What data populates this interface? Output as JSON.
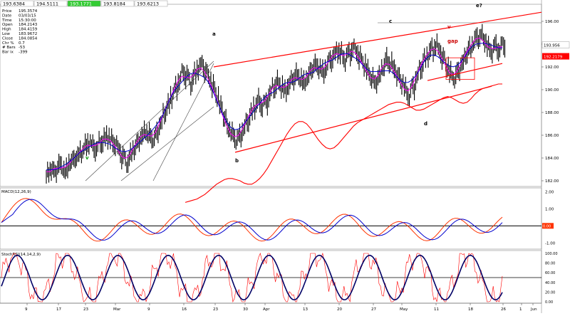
{
  "header": {
    "boxes": [
      {
        "text": "193.6384",
        "color": "#ffffff",
        "bg": "#ffffff",
        "fg": "#000000"
      },
      {
        "text": "194.5111",
        "color": "#ffffff",
        "bg": "#ffffff",
        "fg": "#000000"
      },
      {
        "text": "193.1771",
        "color": "#33cc33",
        "bg": "#33cc33",
        "fg": "#ffffff"
      },
      {
        "text": "193.8184",
        "color": "#ffffff",
        "bg": "#ffffff",
        "fg": "#000000"
      },
      {
        "text": "193.6213",
        "color": "#ffffff",
        "bg": "#ffffff",
        "fg": "#000000"
      }
    ]
  },
  "info_panel": [
    {
      "label": "Price",
      "value": "195.3574"
    },
    {
      "label": "Date",
      "value": "03/03/15"
    },
    {
      "label": "Time",
      "value": "15:30:00"
    },
    {
      "label": "Open",
      "value": "184.2143"
    },
    {
      "label": "High",
      "value": "184.4159"
    },
    {
      "label": "Low",
      "value": "183.9672"
    },
    {
      "label": "Close",
      "value": "184.0854"
    },
    {
      "label": "Chr %",
      "value": "0.7"
    },
    {
      "label": "# Bars",
      "value": "-53"
    },
    {
      "label": "Bar ix",
      "value": "-399"
    }
  ],
  "wave_labels": [
    {
      "text": "a",
      "color": "#000000"
    },
    {
      "text": "b",
      "color": "#000000"
    },
    {
      "text": "c",
      "color": "#000000"
    },
    {
      "text": "d",
      "color": "#000000"
    },
    {
      "text": "e?",
      "color": "#000000"
    },
    {
      "text": "v",
      "color": "#cc0000"
    },
    {
      "text": "v",
      "color": "#009900"
    },
    {
      "text": "gap",
      "color": "#cc0000"
    }
  ],
  "colors": {
    "price_bars": "#000000",
    "ma_fast": "#ff00ff",
    "ma_slow": "#0000cc",
    "ma_long": "#ff0000",
    "channel": "#ff0000",
    "macd_line": "#ff3300",
    "macd_signal": "#0000cc",
    "stoch_fast": "#ff0000",
    "stoch_slow": "#000066",
    "price_badge_bg": "#ff0000",
    "last_badge_bg": "#ffffff"
  },
  "price_panel": {
    "last_price_label": "193.956",
    "current_badge": "192.2179",
    "y_ticks": [
      "196.00",
      "194.00",
      "192.00",
      "190.00",
      "188.00",
      "186.00",
      "184.00",
      "182.00"
    ]
  },
  "macd_panel": {
    "title": "MACD(12,26,9)",
    "y_ticks": [
      "2.00",
      "1.00",
      "0.00",
      "-1.00"
    ],
    "badge": "0.00"
  },
  "stoch_panel": {
    "title": "StochRSI(14,14,2,9)",
    "y_ticks": [
      "100.00",
      "80.00",
      "60.00",
      "40.00",
      "20.00",
      "0.00"
    ]
  },
  "x_axis": {
    "ticks": [
      "9",
      "17",
      "23",
      "Mar",
      "9",
      "16",
      "23",
      "30",
      "Apr",
      "13",
      "20",
      "27",
      "May",
      "11",
      "18",
      "26",
      "1",
      "Jun"
    ]
  },
  "chart_data": {
    "type": "line",
    "title": "",
    "xlabel": "",
    "ylabel": "",
    "ylim": [
      181.5,
      197.5
    ],
    "series": [
      {
        "values": [
          182.6,
          183.0,
          182.8,
          183.4,
          183.1,
          182.9,
          183.6,
          183.9,
          184.2,
          184.5,
          185.0,
          185.3,
          185.1,
          184.8,
          185.4,
          185.6,
          185.9,
          185.5,
          185.2,
          184.7,
          184.1,
          183.6,
          184.2,
          184.8,
          185.4,
          185.9,
          186.3,
          186.0,
          185.6,
          186.2,
          187.0,
          187.9,
          188.6,
          189.4,
          190.1,
          190.8,
          191.5,
          191.2,
          190.6,
          191.3,
          191.9,
          192.2,
          191.6,
          190.9,
          190.2,
          189.4,
          188.5,
          187.5,
          186.6,
          186.1,
          185.6,
          185.9,
          186.5,
          187.2,
          187.9,
          188.5,
          189.0,
          188.6,
          188.9,
          189.6,
          190.2,
          190.6,
          190.3,
          189.9,
          190.4,
          190.9,
          191.3,
          191.0,
          190.6,
          191.1,
          191.7,
          192.2,
          191.9,
          191.5,
          192.0,
          192.6,
          193.0,
          193.4,
          193.1,
          192.7,
          193.2,
          193.6,
          193.3,
          192.8,
          192.2,
          191.6,
          191.0,
          190.6,
          191.2,
          191.9,
          192.6,
          192.3,
          191.8,
          191.2,
          190.6,
          190.0,
          189.5,
          190.2,
          191.1,
          191.9,
          192.6,
          193.1,
          193.5,
          193.9,
          193.4,
          192.8,
          192.0,
          191.4,
          191.0,
          191.6,
          192.3,
          193.0,
          193.6,
          194.1,
          194.5,
          194.8,
          194.3,
          193.7,
          193.4,
          193.8,
          193.6,
          193.9
        ]
      },
      {
        "values": [
          183.3,
          183.4,
          183.5,
          183.6,
          183.8,
          184.0,
          184.3,
          184.6,
          184.9,
          185.1,
          185.3,
          185.4,
          185.4,
          185.3,
          185.2,
          185.0,
          184.9,
          184.9,
          185.1,
          185.4,
          185.8,
          186.3,
          186.9,
          187.5,
          188.1,
          188.7,
          189.3,
          189.8,
          190.2,
          190.4,
          190.4,
          190.2,
          189.8,
          189.3,
          188.8,
          188.4,
          188.1,
          188.0,
          188.1,
          188.4,
          188.8,
          189.2,
          189.6,
          190.0,
          190.3,
          190.5,
          190.7,
          190.9,
          191.1,
          191.3,
          191.5,
          191.7,
          191.9,
          192.0,
          192.1,
          192.1,
          192.0,
          191.8,
          191.6,
          191.4,
          191.4,
          191.5,
          191.7,
          191.9,
          192.1,
          192.3,
          192.5,
          192.6,
          192.5,
          192.3,
          192.1,
          192.0,
          192.1,
          192.4,
          192.8,
          193.1,
          193.3,
          193.4,
          193.5,
          193.6,
          193.7,
          193.7
        ]
      }
    ]
  }
}
